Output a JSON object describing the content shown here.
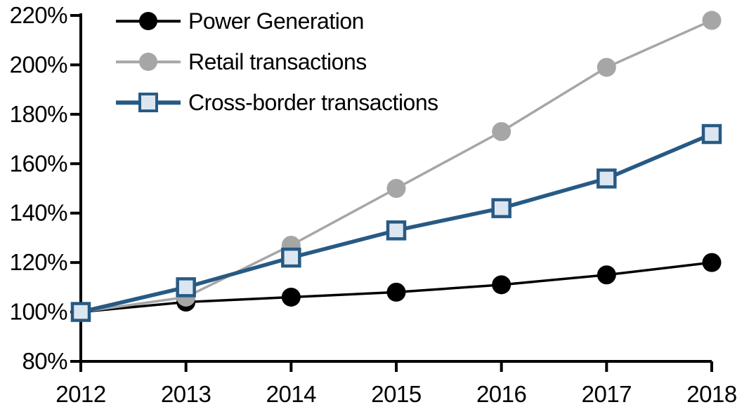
{
  "chart_data": {
    "type": "line",
    "title": "",
    "xlabel": "",
    "ylabel": "",
    "categories": [
      "2012",
      "2013",
      "2014",
      "2015",
      "2016",
      "2017",
      "2018"
    ],
    "series": [
      {
        "name": "Power Generation",
        "values": [
          100,
          104,
          106,
          108,
          111,
          115,
          120
        ],
        "color": "#000000",
        "marker_shape": "circle",
        "marker_fill": "#000000",
        "line_width": 3.5
      },
      {
        "name": "Retail transactions",
        "values": [
          100,
          106,
          127,
          150,
          173,
          199,
          218
        ],
        "color": "#A6A6A6",
        "marker_shape": "circle",
        "marker_fill": "#A6A6A6",
        "line_width": 3.5
      },
      {
        "name": "Cross-border transactions",
        "values": [
          100,
          110,
          122,
          133,
          142,
          154,
          172
        ],
        "color": "#275A84",
        "marker_shape": "square",
        "marker_fill": "#DCE6F1",
        "line_width": 5.5
      }
    ],
    "ylim": [
      80,
      220
    ],
    "ytick_step": 20,
    "ytick_labels": [
      "80%",
      "100%",
      "120%",
      "140%",
      "160%",
      "180%",
      "200%",
      "220%"
    ],
    "xtick_labels": [
      "2012",
      "2013",
      "2014",
      "2015",
      "2016",
      "2017",
      "2018"
    ],
    "grid": false,
    "legend_position": "top-left-inside",
    "axis_color": "#000000"
  }
}
